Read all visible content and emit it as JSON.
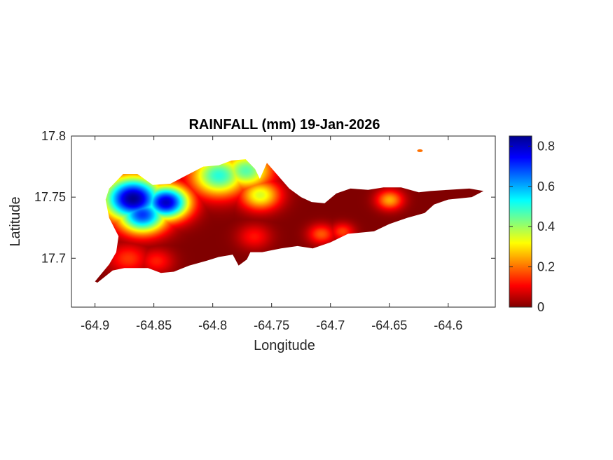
{
  "figure": {
    "title": "RAINFALL (mm) 19-Jan-2026",
    "xlabel": "Longitude",
    "ylabel": "Latitude"
  },
  "chart_data": {
    "type": "heatmap",
    "title": "RAINFALL (mm) 19-Jan-2026",
    "xlabel": "Longitude",
    "ylabel": "Latitude",
    "xlim": [
      -64.92,
      -64.56
    ],
    "ylim": [
      17.66,
      17.8
    ],
    "xticks": [
      -64.9,
      -64.85,
      -64.8,
      -64.75,
      -64.7,
      -64.65,
      -64.6
    ],
    "xtick_labels": [
      "-64.9",
      "-64.85",
      "-64.8",
      "-64.75",
      "-64.7",
      "-64.65",
      "-64.6"
    ],
    "yticks": [
      17.7,
      17.75,
      17.8
    ],
    "ytick_labels": [
      "17.7",
      "17.75",
      "17.8"
    ],
    "grid": false,
    "colormap": "jet",
    "colorbar": {
      "range": [
        0,
        0.85
      ],
      "ticks": [
        0,
        0.2,
        0.4,
        0.6,
        0.8
      ],
      "tick_labels": [
        "0",
        "0.2",
        "0.4",
        "0.6",
        "0.8"
      ]
    },
    "island_outline": [
      [
        -64.9,
        17.681
      ],
      [
        -64.888,
        17.695
      ],
      [
        -64.882,
        17.705
      ],
      [
        -64.88,
        17.718
      ],
      [
        -64.888,
        17.733
      ],
      [
        -64.891,
        17.748
      ],
      [
        -64.888,
        17.757
      ],
      [
        -64.876,
        17.769
      ],
      [
        -64.864,
        17.769
      ],
      [
        -64.851,
        17.76
      ],
      [
        -64.836,
        17.761
      ],
      [
        -64.822,
        17.768
      ],
      [
        -64.808,
        17.775
      ],
      [
        -64.795,
        17.776
      ],
      [
        -64.784,
        17.78
      ],
      [
        -64.772,
        17.781
      ],
      [
        -64.764,
        17.773
      ],
      [
        -64.76,
        17.765
      ],
      [
        -64.754,
        17.778
      ],
      [
        -64.744,
        17.767
      ],
      [
        -64.735,
        17.757
      ],
      [
        -64.725,
        17.75
      ],
      [
        -64.716,
        17.746
      ],
      [
        -64.705,
        17.745
      ],
      [
        -64.695,
        17.753
      ],
      [
        -64.683,
        17.757
      ],
      [
        -64.668,
        17.756
      ],
      [
        -64.655,
        17.758
      ],
      [
        -64.64,
        17.758
      ],
      [
        -64.625,
        17.754
      ],
      [
        -64.615,
        17.755
      ],
      [
        -64.6,
        17.756
      ],
      [
        -64.582,
        17.757
      ],
      [
        -64.57,
        17.755
      ],
      [
        -64.58,
        17.75
      ],
      [
        -64.6,
        17.748
      ],
      [
        -64.612,
        17.744
      ],
      [
        -64.62,
        17.737
      ],
      [
        -64.635,
        17.733
      ],
      [
        -64.65,
        17.728
      ],
      [
        -64.663,
        17.722
      ],
      [
        -64.685,
        17.72
      ],
      [
        -64.7,
        17.713
      ],
      [
        -64.715,
        17.708
      ],
      [
        -64.728,
        17.71
      ],
      [
        -64.742,
        17.708
      ],
      [
        -64.758,
        17.705
      ],
      [
        -64.768,
        17.705
      ],
      [
        -64.771,
        17.699
      ],
      [
        -64.778,
        17.694
      ],
      [
        -64.783,
        17.703
      ],
      [
        -64.795,
        17.701
      ],
      [
        -64.805,
        17.698
      ],
      [
        -64.82,
        17.694
      ],
      [
        -64.833,
        17.689
      ],
      [
        -64.844,
        17.688
      ],
      [
        -64.855,
        17.692
      ],
      [
        -64.875,
        17.692
      ],
      [
        -64.885,
        17.69
      ],
      [
        -64.898,
        17.68
      ]
    ],
    "rainfall_centers": [
      {
        "lon": -64.868,
        "lat": 17.749,
        "value": 0.85,
        "spread": 0.018
      },
      {
        "lon": -64.84,
        "lat": 17.746,
        "value": 0.8,
        "spread": 0.014
      },
      {
        "lon": -64.86,
        "lat": 17.736,
        "value": 0.7,
        "spread": 0.015
      },
      {
        "lon": -64.795,
        "lat": 17.768,
        "value": 0.5,
        "spread": 0.017
      },
      {
        "lon": -64.772,
        "lat": 17.772,
        "value": 0.46,
        "spread": 0.015
      },
      {
        "lon": -64.76,
        "lat": 17.752,
        "value": 0.35,
        "spread": 0.012
      },
      {
        "lon": -64.65,
        "lat": 17.748,
        "value": 0.25,
        "spread": 0.008
      },
      {
        "lon": -64.708,
        "lat": 17.72,
        "value": 0.18,
        "spread": 0.008
      },
      {
        "lon": -64.69,
        "lat": 17.722,
        "value": 0.16,
        "spread": 0.007
      },
      {
        "lon": -64.872,
        "lat": 17.7,
        "value": 0.15,
        "spread": 0.012
      },
      {
        "lon": -64.848,
        "lat": 17.698,
        "value": 0.13,
        "spread": 0.01
      },
      {
        "lon": -64.765,
        "lat": 17.718,
        "value": 0.12,
        "spread": 0.01
      }
    ],
    "islet": {
      "lon": -64.624,
      "lat": 17.788,
      "value": 0.2
    }
  }
}
